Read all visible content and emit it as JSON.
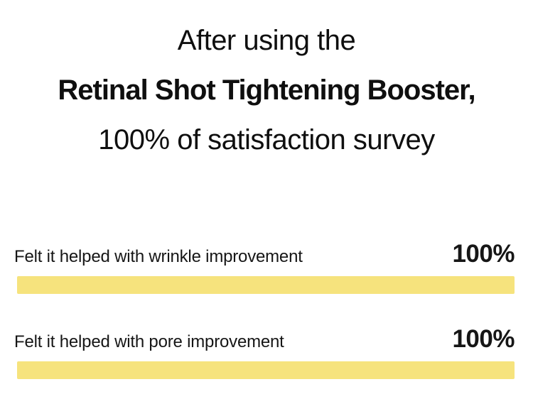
{
  "title": {
    "line1": "After using the",
    "line2": "Retinal Shot Tightening Booster,",
    "line3": "100% of satisfaction survey"
  },
  "chart_data": {
    "type": "bar",
    "orientation": "horizontal",
    "title": "After using the Retinal Shot Tightening Booster, 100% of satisfaction survey",
    "categories": [
      "Felt it helped with wrinkle improvement",
      "Felt it helped with pore improvement"
    ],
    "values": [
      100,
      100
    ],
    "value_labels": [
      "100%",
      "100%"
    ],
    "xlim": [
      0,
      100
    ],
    "grid": false,
    "legend": false,
    "bar_color": "#F6E37D",
    "text_color": "#111111",
    "background_color": "#FFFFFF"
  }
}
